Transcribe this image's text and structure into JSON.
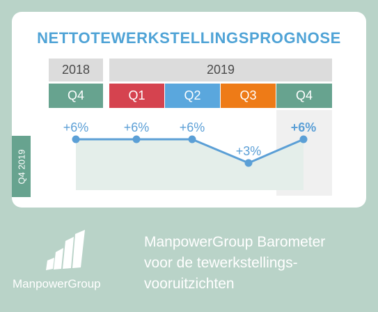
{
  "title": "NETTOTEWERKSTELLINGSPROGNOSE",
  "years": [
    "2018",
    "2019"
  ],
  "side_label": "Q4 2019",
  "chart_data": {
    "type": "line",
    "categories": [
      "Q4",
      "Q1",
      "Q2",
      "Q3",
      "Q4"
    ],
    "category_colors": [
      "#67a38f",
      "#d5434f",
      "#5aa7dd",
      "#ee7b17",
      "#67a38f"
    ],
    "values": [
      6,
      6,
      6,
      3,
      6
    ],
    "data_labels": [
      "+6%",
      "+6%",
      "+6%",
      "+3%",
      "+6%"
    ],
    "highlight_index": 4,
    "line_color": "#5b9fd6",
    "area_color": "#e4eeea"
  },
  "logo": {
    "name": "ManpowerGroup"
  },
  "footer_lines": [
    "ManpowerGroup Barometer",
    "voor de tewerkstellings-",
    "vooruitzichten"
  ]
}
